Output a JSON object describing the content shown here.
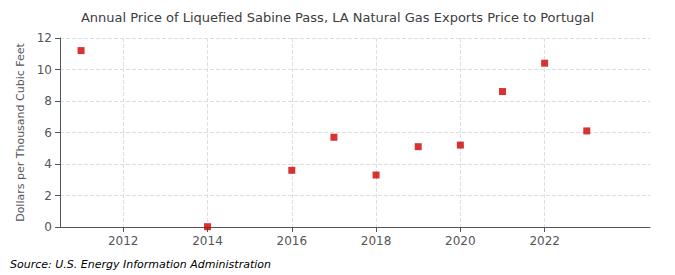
{
  "chart_data": {
    "type": "scatter",
    "title": "Annual Price of Liquefied Sabine Pass, LA Natural Gas Exports Price to Portugal",
    "ylabel": "Dollars per Thousand Cubic Feet",
    "annotations": [
      "Source: U.S. Energy Information Administration"
    ],
    "x": [
      2011,
      2014,
      2016,
      2017,
      2018,
      2019,
      2020,
      2021,
      2022,
      2023
    ],
    "values": [
      11.2,
      0.02,
      3.6,
      5.7,
      3.3,
      5.1,
      5.2,
      8.6,
      10.4,
      6.1
    ],
    "color": "#cc0000",
    "marker": "square",
    "xlim": [
      2010.5,
      2024.5
    ],
    "xticks": [
      2012,
      2014,
      2016,
      2018,
      2020,
      2022
    ],
    "ylim": [
      0,
      12
    ],
    "yticks": [
      0,
      2,
      4,
      6,
      8,
      10,
      12
    ],
    "grid": true
  }
}
